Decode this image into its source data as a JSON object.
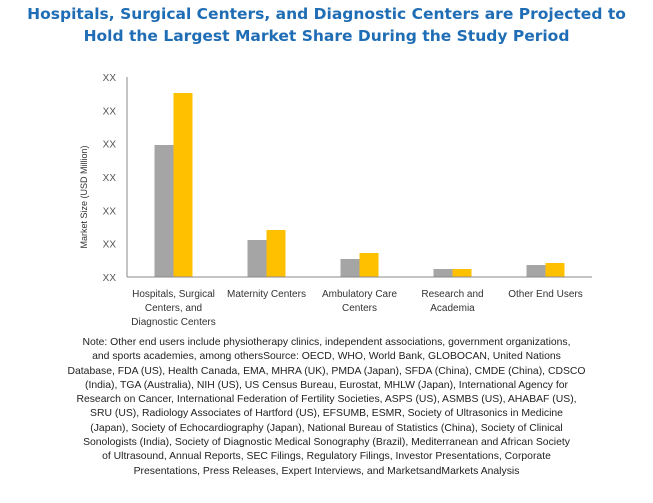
{
  "title": {
    "lines": [
      "Hospitals, Surgical Centers, and Diagnostic Centers are Projected to",
      "Hold the Largest Market Share During the Study Period"
    ]
  },
  "chart_data": {
    "type": "bar",
    "title": "Hospitals, Surgical Centers, and Diagnostic Centers are Projected to Hold the Largest Market Share During the Study Period",
    "xlabel": "",
    "ylabel": "Market Size (USD Million)",
    "ylim": [
      0,
      6
    ],
    "y_tick_labels": [
      "XX",
      "XX",
      "XX",
      "XX",
      "XX",
      "XX",
      "XX"
    ],
    "grid": false,
    "legend": "none",
    "categories": [
      [
        "Hospitals, Surgical",
        "Centers, and",
        "Diagnostic Centers"
      ],
      [
        "Maternity Centers"
      ],
      [
        "Ambulatory Care",
        "Centers"
      ],
      [
        "Research and",
        "Academia"
      ],
      [
        "Other End Users"
      ]
    ],
    "series": [
      {
        "color": "#a5a5a5",
        "values": [
          3.96,
          1.11,
          0.54,
          0.24,
          0.36
        ]
      },
      {
        "color": "#ffc000",
        "values": [
          5.52,
          1.41,
          0.72,
          0.24,
          0.42
        ]
      }
    ]
  },
  "note": {
    "lines": [
      "Note: Other end users include physiotherapy clinics, independent associations, government organizations,",
      "and sports academies, among othersSource: OECD, WHO, World Bank, GLOBOCAN, United Nations",
      "Database, FDA (US), Health Canada, EMA, MHRA (UK), PMDA (Japan), SFDA (China), CMDE (China), CDSCO",
      "(India), TGA (Australia), NIH (US), US Census Bureau, Eurostat, MHLW (Japan), International Agency for",
      "Research on Cancer, International Federation of Fertility Societies, ASPS (US), ASMBS (US), AHABAF (US),",
      "SRU (US), Radiology Associates of Hartford (US), EFSUMB, ESMR, Society of Ultrasonics in Medicine",
      "(Japan), Society of Echocardiography (Japan), National Bureau of Statistics (China), Society of Clinical",
      "Sonologists (India), Society of Diagnostic Medical Sonography (Brazil), Mediterranean and African Society",
      "of Ultrasound, Annual Reports, SEC Filings, Regulatory Filings, Investor Presentations, Corporate",
      "Presentations, Press Releases, Expert Interviews, and MarketsandMarkets Analysis"
    ]
  }
}
